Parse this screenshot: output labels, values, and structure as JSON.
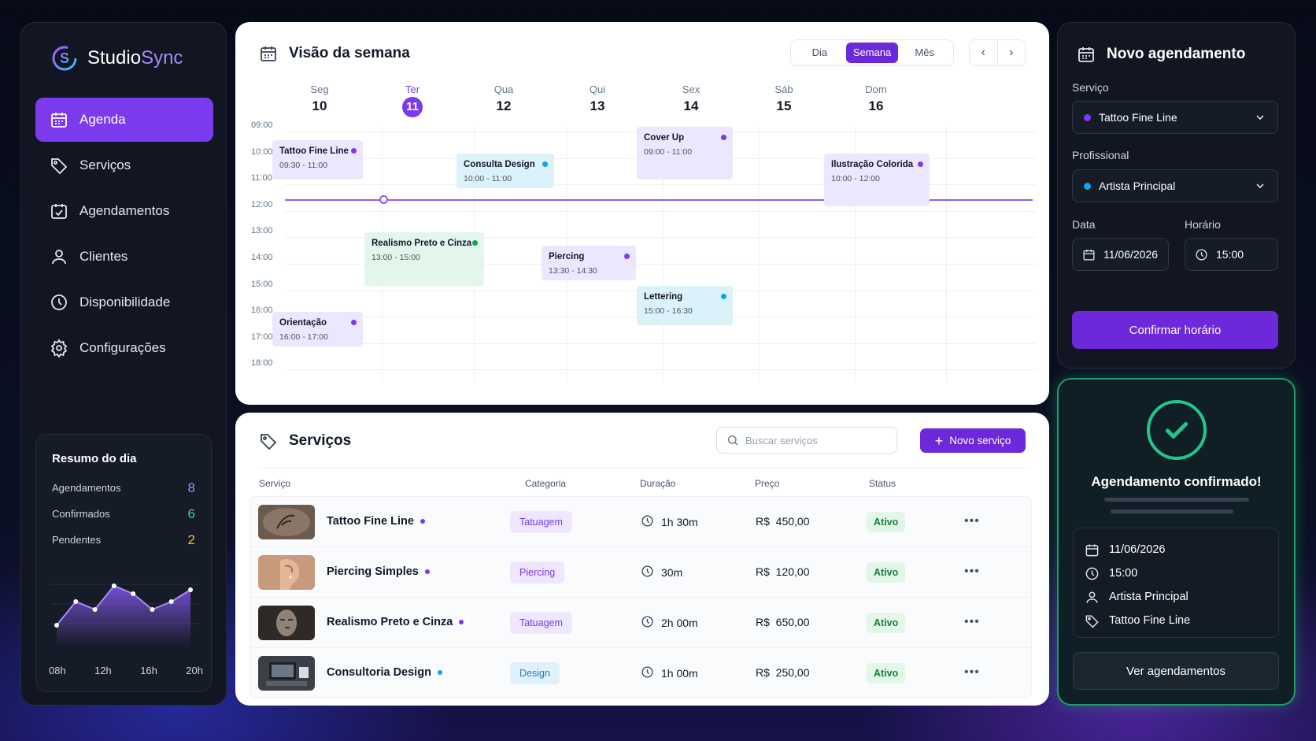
{
  "app": {
    "brand_a": "Studio",
    "brand_b": "Sync",
    "logo_icon": "s-logo-icon"
  },
  "sidebar": {
    "items": [
      {
        "label": "Agenda",
        "icon": "calendar-icon",
        "active": true
      },
      {
        "label": "Serviços",
        "icon": "tag-icon"
      },
      {
        "label": "Agendamentos",
        "icon": "calendar-check-icon"
      },
      {
        "label": "Clientes",
        "icon": "user-icon"
      },
      {
        "label": "Disponibilidade",
        "icon": "clock-icon"
      },
      {
        "label": "Configurações",
        "icon": "gear-icon"
      }
    ],
    "summary": {
      "title": "Resumo do dia",
      "rows": [
        {
          "label": "Agendamentos",
          "value": "8",
          "color": "#a78bfa"
        },
        {
          "label": "Confirmados",
          "value": "6",
          "color": "#34d399"
        },
        {
          "label": "Pendentes",
          "value": "2",
          "color": "#fbbf24"
        }
      ],
      "chart_data": {
        "type": "area",
        "x_labels": [
          "08h",
          "12h",
          "16h",
          "20h"
        ],
        "values": [
          2,
          5,
          4,
          7,
          6,
          4,
          5,
          6.5
        ]
      }
    }
  },
  "calendar": {
    "title": "Visão da semana",
    "views": [
      "Dia",
      "Semana",
      "Mês"
    ],
    "active_view": "Semana",
    "prev": "‹",
    "next": "›",
    "days": [
      {
        "name": "Seg",
        "num": "10"
      },
      {
        "name": "Ter",
        "num": "11",
        "today": true
      },
      {
        "name": "Qua",
        "num": "12"
      },
      {
        "name": "Qui",
        "num": "13"
      },
      {
        "name": "Sex",
        "num": "14"
      },
      {
        "name": "Sáb",
        "num": "15"
      },
      {
        "name": "Dom",
        "num": "16"
      }
    ],
    "hours": [
      "09:00",
      "10:00",
      "11:00",
      "12:00",
      "13:00",
      "14:00",
      "15:00",
      "16:00",
      "17:00",
      "18:00"
    ],
    "now_time": "11:30",
    "events": [
      {
        "day": 0,
        "start": "09:30",
        "end": "11:00",
        "title": "Tattoo Fine Line",
        "time": "09:30 - 11:00",
        "color": "purple"
      },
      {
        "day": 2,
        "start": "10:00",
        "end": "11:00",
        "title": "Consulta Design",
        "time": "10:00 - 11:00",
        "color": "blue"
      },
      {
        "day": 4,
        "start": "09:00",
        "end": "11:00",
        "title": "Cover Up",
        "time": "09:00 - 11:00",
        "color": "purple"
      },
      {
        "day": 6,
        "start": "10:00",
        "end": "12:00",
        "title": "Ilustração Colorida",
        "time": "10:00 - 12:00",
        "color": "purple"
      },
      {
        "day": 1,
        "start": "13:00",
        "end": "15:00",
        "title": "Realismo Preto e Cinza",
        "time": "13:00 - 15:00",
        "color": "green"
      },
      {
        "day": 3,
        "start": "13:30",
        "end": "14:30",
        "title": "Piercing",
        "time": "13:30 - 14:30",
        "color": "purple"
      },
      {
        "day": 4,
        "start": "15:00",
        "end": "16:30",
        "title": "Lettering",
        "time": "15:00 - 16:30",
        "color": "blue"
      },
      {
        "day": 0,
        "start": "16:00",
        "end": "17:00",
        "title": "Orientação",
        "time": "16:00 - 17:00",
        "color": "purple"
      }
    ]
  },
  "services": {
    "title": "Serviços",
    "search_placeholder": "Buscar serviços",
    "new_button": "Novo serviço",
    "columns": [
      "Serviço",
      "Categoria",
      "Duração",
      "Preço",
      "Status"
    ],
    "rows": [
      {
        "name": "Tattoo Fine Line",
        "dot": "#7c3aed",
        "category": "Tatuagem",
        "cat_type": "tat",
        "duration": "1h 30m",
        "price": "R$  450,00",
        "status": "Ativo",
        "thumb": "tattoo-thumb"
      },
      {
        "name": "Piercing Simples",
        "dot": "#7c3aed",
        "category": "Piercing",
        "cat_type": "tat",
        "duration": "30m",
        "price": "R$  120,00",
        "status": "Ativo",
        "thumb": "ear-thumb"
      },
      {
        "name": "Realismo Preto e Cinza",
        "dot": "#7c3aed",
        "category": "Tatuagem",
        "cat_type": "tat",
        "duration": "2h 00m",
        "price": "R$  650,00",
        "status": "Ativo",
        "thumb": "portrait-thumb"
      },
      {
        "name": "Consultoria Design",
        "dot": "#0ea5e9",
        "category": "Design",
        "cat_type": "des",
        "duration": "1h 00m",
        "price": "R$  250,00",
        "status": "Ativo",
        "thumb": "desk-thumb"
      }
    ]
  },
  "booking": {
    "title": "Novo agendamento",
    "service_label": "Serviço",
    "service_value": "Tattoo Fine Line",
    "service_dot": "#7c3aed",
    "pro_label": "Profissional",
    "pro_value": "Artista Principal",
    "pro_dot": "#0ea5e9",
    "date_label": "Data",
    "date_value": "11/06/2026",
    "time_label": "Horário",
    "time_value": "15:00",
    "confirm": "Confirmar horário"
  },
  "confirmation": {
    "title": "Agendamento confirmado!",
    "date": "11/06/2026",
    "time": "15:00",
    "professional": "Artista Principal",
    "service": "Tattoo Fine Line",
    "view_button": "Ver agendamentos"
  }
}
